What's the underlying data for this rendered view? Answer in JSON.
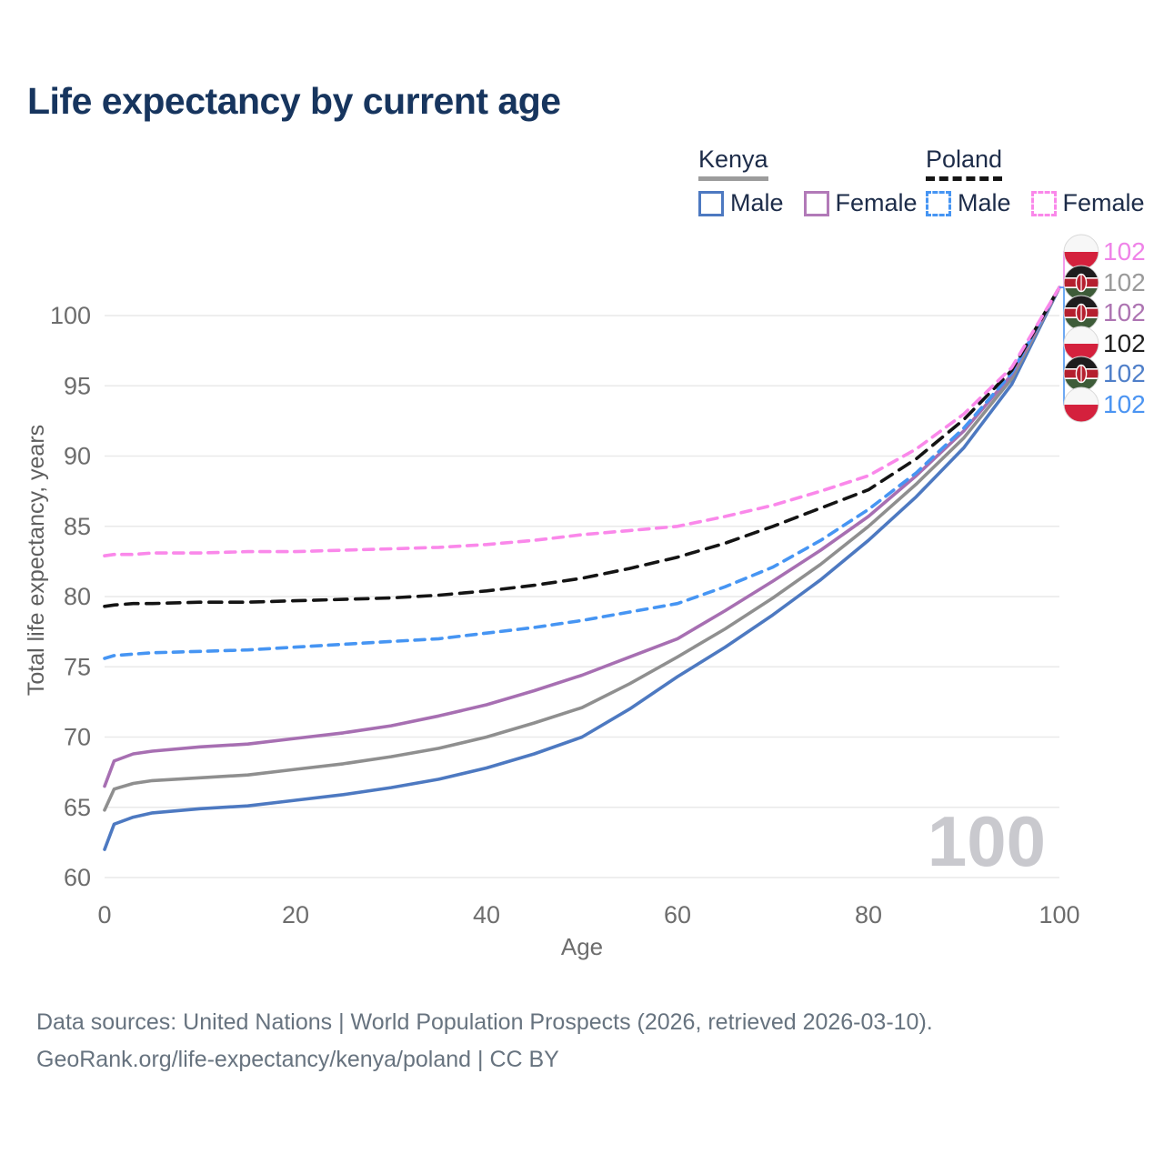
{
  "title": "Life expectancy by current age",
  "legend": {
    "groups": [
      {
        "title": "Kenya",
        "line_style": "solid",
        "underline_color": "#9c9c9c",
        "items": [
          {
            "label": "Male",
            "color": "#4d79c1"
          },
          {
            "label": "Female",
            "color": "#b27ab8"
          }
        ]
      },
      {
        "title": "Poland",
        "line_style": "dashed",
        "underline_color": "#151515",
        "items": [
          {
            "label": "Male",
            "color": "#4695f3"
          },
          {
            "label": "Female",
            "color": "#fa88ea"
          }
        ]
      }
    ]
  },
  "chart_data": {
    "type": "line",
    "title": "Life expectancy by current age",
    "xlabel": "Age",
    "ylabel": "Total life expectancy, years",
    "xlim": [
      0,
      100
    ],
    "ylim": [
      60,
      103
    ],
    "xticks": [
      0,
      20,
      40,
      60,
      80,
      100
    ],
    "yticks": [
      60,
      65,
      70,
      75,
      80,
      85,
      90,
      95,
      100
    ],
    "grid": "horizontal",
    "legend_position": "top-right",
    "watermark": "100",
    "x": [
      0,
      1,
      3,
      5,
      10,
      15,
      20,
      25,
      30,
      35,
      40,
      45,
      50,
      55,
      60,
      65,
      70,
      75,
      80,
      85,
      90,
      95,
      100
    ],
    "series": [
      {
        "name": "Kenya Male",
        "country": "Kenya",
        "sex": "Male",
        "color": "#4d79c1",
        "dash": "solid",
        "values": [
          62.0,
          63.8,
          64.3,
          64.6,
          64.9,
          65.1,
          65.5,
          65.9,
          66.4,
          67.0,
          67.8,
          68.8,
          70.0,
          72.0,
          74.3,
          76.4,
          78.7,
          81.2,
          84.0,
          87.1,
          90.6,
          95.1,
          102
        ]
      },
      {
        "name": "Kenya Total",
        "country": "Kenya",
        "sex": "Both",
        "color": "#8f8f8f",
        "dash": "solid",
        "values": [
          64.8,
          66.3,
          66.7,
          66.9,
          67.1,
          67.3,
          67.7,
          68.1,
          68.6,
          69.2,
          70.0,
          71.0,
          72.1,
          73.8,
          75.7,
          77.7,
          79.9,
          82.3,
          85.0,
          88.0,
          91.3,
          95.5,
          102
        ]
      },
      {
        "name": "Kenya Female",
        "country": "Kenya",
        "sex": "Female",
        "color": "#a76fb2",
        "dash": "solid",
        "values": [
          66.5,
          68.3,
          68.8,
          69.0,
          69.3,
          69.5,
          69.9,
          70.3,
          70.8,
          71.5,
          72.3,
          73.3,
          74.4,
          75.7,
          77.0,
          79.0,
          81.1,
          83.3,
          85.7,
          88.6,
          91.8,
          95.8,
          102
        ]
      },
      {
        "name": "Poland Male",
        "country": "Poland",
        "sex": "Male",
        "color": "#4695f3",
        "dash": "dashed",
        "values": [
          75.6,
          75.8,
          75.9,
          76.0,
          76.1,
          76.2,
          76.4,
          76.6,
          76.8,
          77.0,
          77.4,
          77.8,
          78.3,
          78.9,
          79.5,
          80.7,
          82.1,
          84.0,
          86.2,
          88.8,
          92.0,
          95.9,
          102
        ]
      },
      {
        "name": "Poland Total",
        "country": "Poland",
        "sex": "Both",
        "color": "#141414",
        "dash": "dashed",
        "values": [
          79.3,
          79.4,
          79.5,
          79.5,
          79.6,
          79.6,
          79.7,
          79.8,
          79.9,
          80.1,
          80.4,
          80.8,
          81.3,
          82.0,
          82.8,
          83.8,
          85.0,
          86.3,
          87.6,
          89.8,
          92.6,
          96.1,
          102
        ]
      },
      {
        "name": "Poland Female",
        "country": "Poland",
        "sex": "Female",
        "color": "#fa88ea",
        "dash": "dashed",
        "values": [
          82.9,
          83.0,
          83.0,
          83.1,
          83.1,
          83.2,
          83.2,
          83.3,
          83.4,
          83.5,
          83.7,
          84.0,
          84.4,
          84.7,
          85.0,
          85.7,
          86.5,
          87.5,
          88.6,
          90.5,
          93.0,
          96.3,
          102
        ]
      }
    ],
    "end_labels": [
      {
        "series": "Poland Female",
        "flag": "poland",
        "value": "102",
        "color": "#ef83e8"
      },
      {
        "series": "Kenya Total",
        "flag": "kenya",
        "value": "102",
        "color": "#9a9a9a"
      },
      {
        "series": "Kenya Female",
        "flag": "kenya",
        "value": "102",
        "color": "#ad74b2"
      },
      {
        "series": "Poland Total",
        "flag": "poland",
        "value": "102",
        "color": "#1f1f1f"
      },
      {
        "series": "Kenya Male",
        "flag": "kenya",
        "value": "102",
        "color": "#4f7fc9"
      },
      {
        "series": "Poland Male",
        "flag": "poland",
        "value": "102",
        "color": "#4b94f2"
      }
    ],
    "flag_colors": {
      "poland_white": "#f7f7f7",
      "poland_red": "#d4213d",
      "kenya_black": "#1f1d1e",
      "kenya_red": "#b5202f",
      "kenya_green": "#3e5c39"
    }
  },
  "footer": {
    "line1": "Data sources: United Nations | World Population Prospects (2026, retrieved 2026-03-10).",
    "line2": "GeoRank.org/life-expectancy/kenya/poland | CC BY"
  }
}
